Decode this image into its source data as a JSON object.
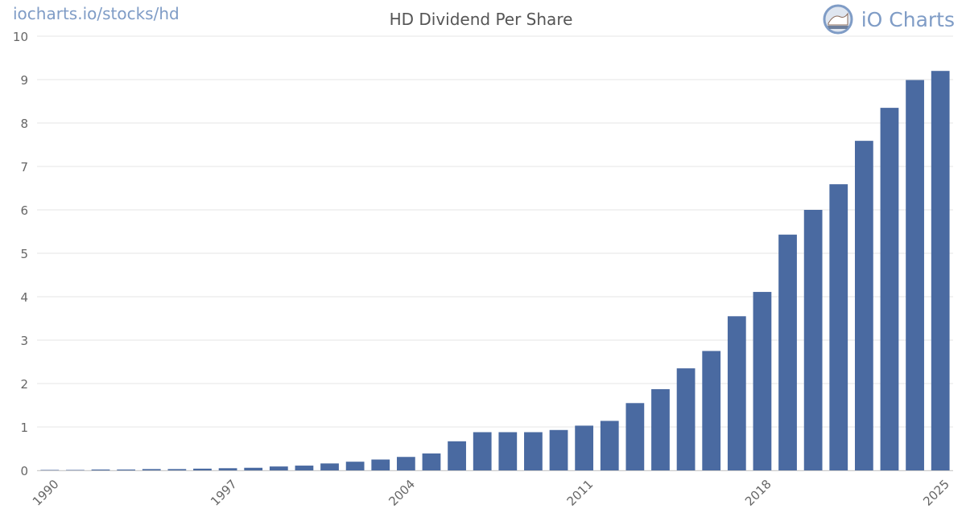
{
  "header": {
    "site_url": "iocharts.io/stocks/hd",
    "brand_name": "iO Charts"
  },
  "colors": {
    "bar": "#4a6aa1",
    "grid": "#e6e6e6",
    "axis_text": "#666666",
    "brand": "#7f9cc6"
  },
  "icons": {
    "brand_logo": "io-charts-logo-icon"
  },
  "chart_data": {
    "type": "bar",
    "title": "HD Dividend Per Share",
    "xlabel": "",
    "ylabel": "",
    "ylim": [
      0,
      10
    ],
    "yticks": [
      0,
      1,
      2,
      3,
      4,
      5,
      6,
      7,
      8,
      9,
      10
    ],
    "grid": true,
    "legend": "none",
    "x_tick_labels": [
      "1990",
      "1997",
      "2004",
      "2011",
      "2018",
      "2025"
    ],
    "categories": [
      "1990",
      "1991",
      "1992",
      "1993",
      "1994",
      "1995",
      "1996",
      "1997",
      "1998",
      "1999",
      "2000",
      "2001",
      "2002",
      "2003",
      "2004",
      "2005",
      "2006",
      "2007",
      "2008",
      "2009",
      "2010",
      "2011",
      "2012",
      "2013",
      "2014",
      "2015",
      "2016",
      "2017",
      "2018",
      "2019",
      "2020",
      "2021",
      "2022",
      "2023",
      "2024",
      "2025"
    ],
    "values": [
      0.01,
      0.01,
      0.02,
      0.02,
      0.03,
      0.03,
      0.04,
      0.05,
      0.06,
      0.09,
      0.11,
      0.16,
      0.2,
      0.25,
      0.31,
      0.39,
      0.67,
      0.88,
      0.88,
      0.88,
      0.93,
      1.03,
      1.14,
      1.55,
      1.87,
      2.35,
      2.75,
      3.55,
      4.11,
      5.43,
      6.0,
      6.59,
      7.59,
      8.35,
      8.99,
      9.2
    ]
  }
}
